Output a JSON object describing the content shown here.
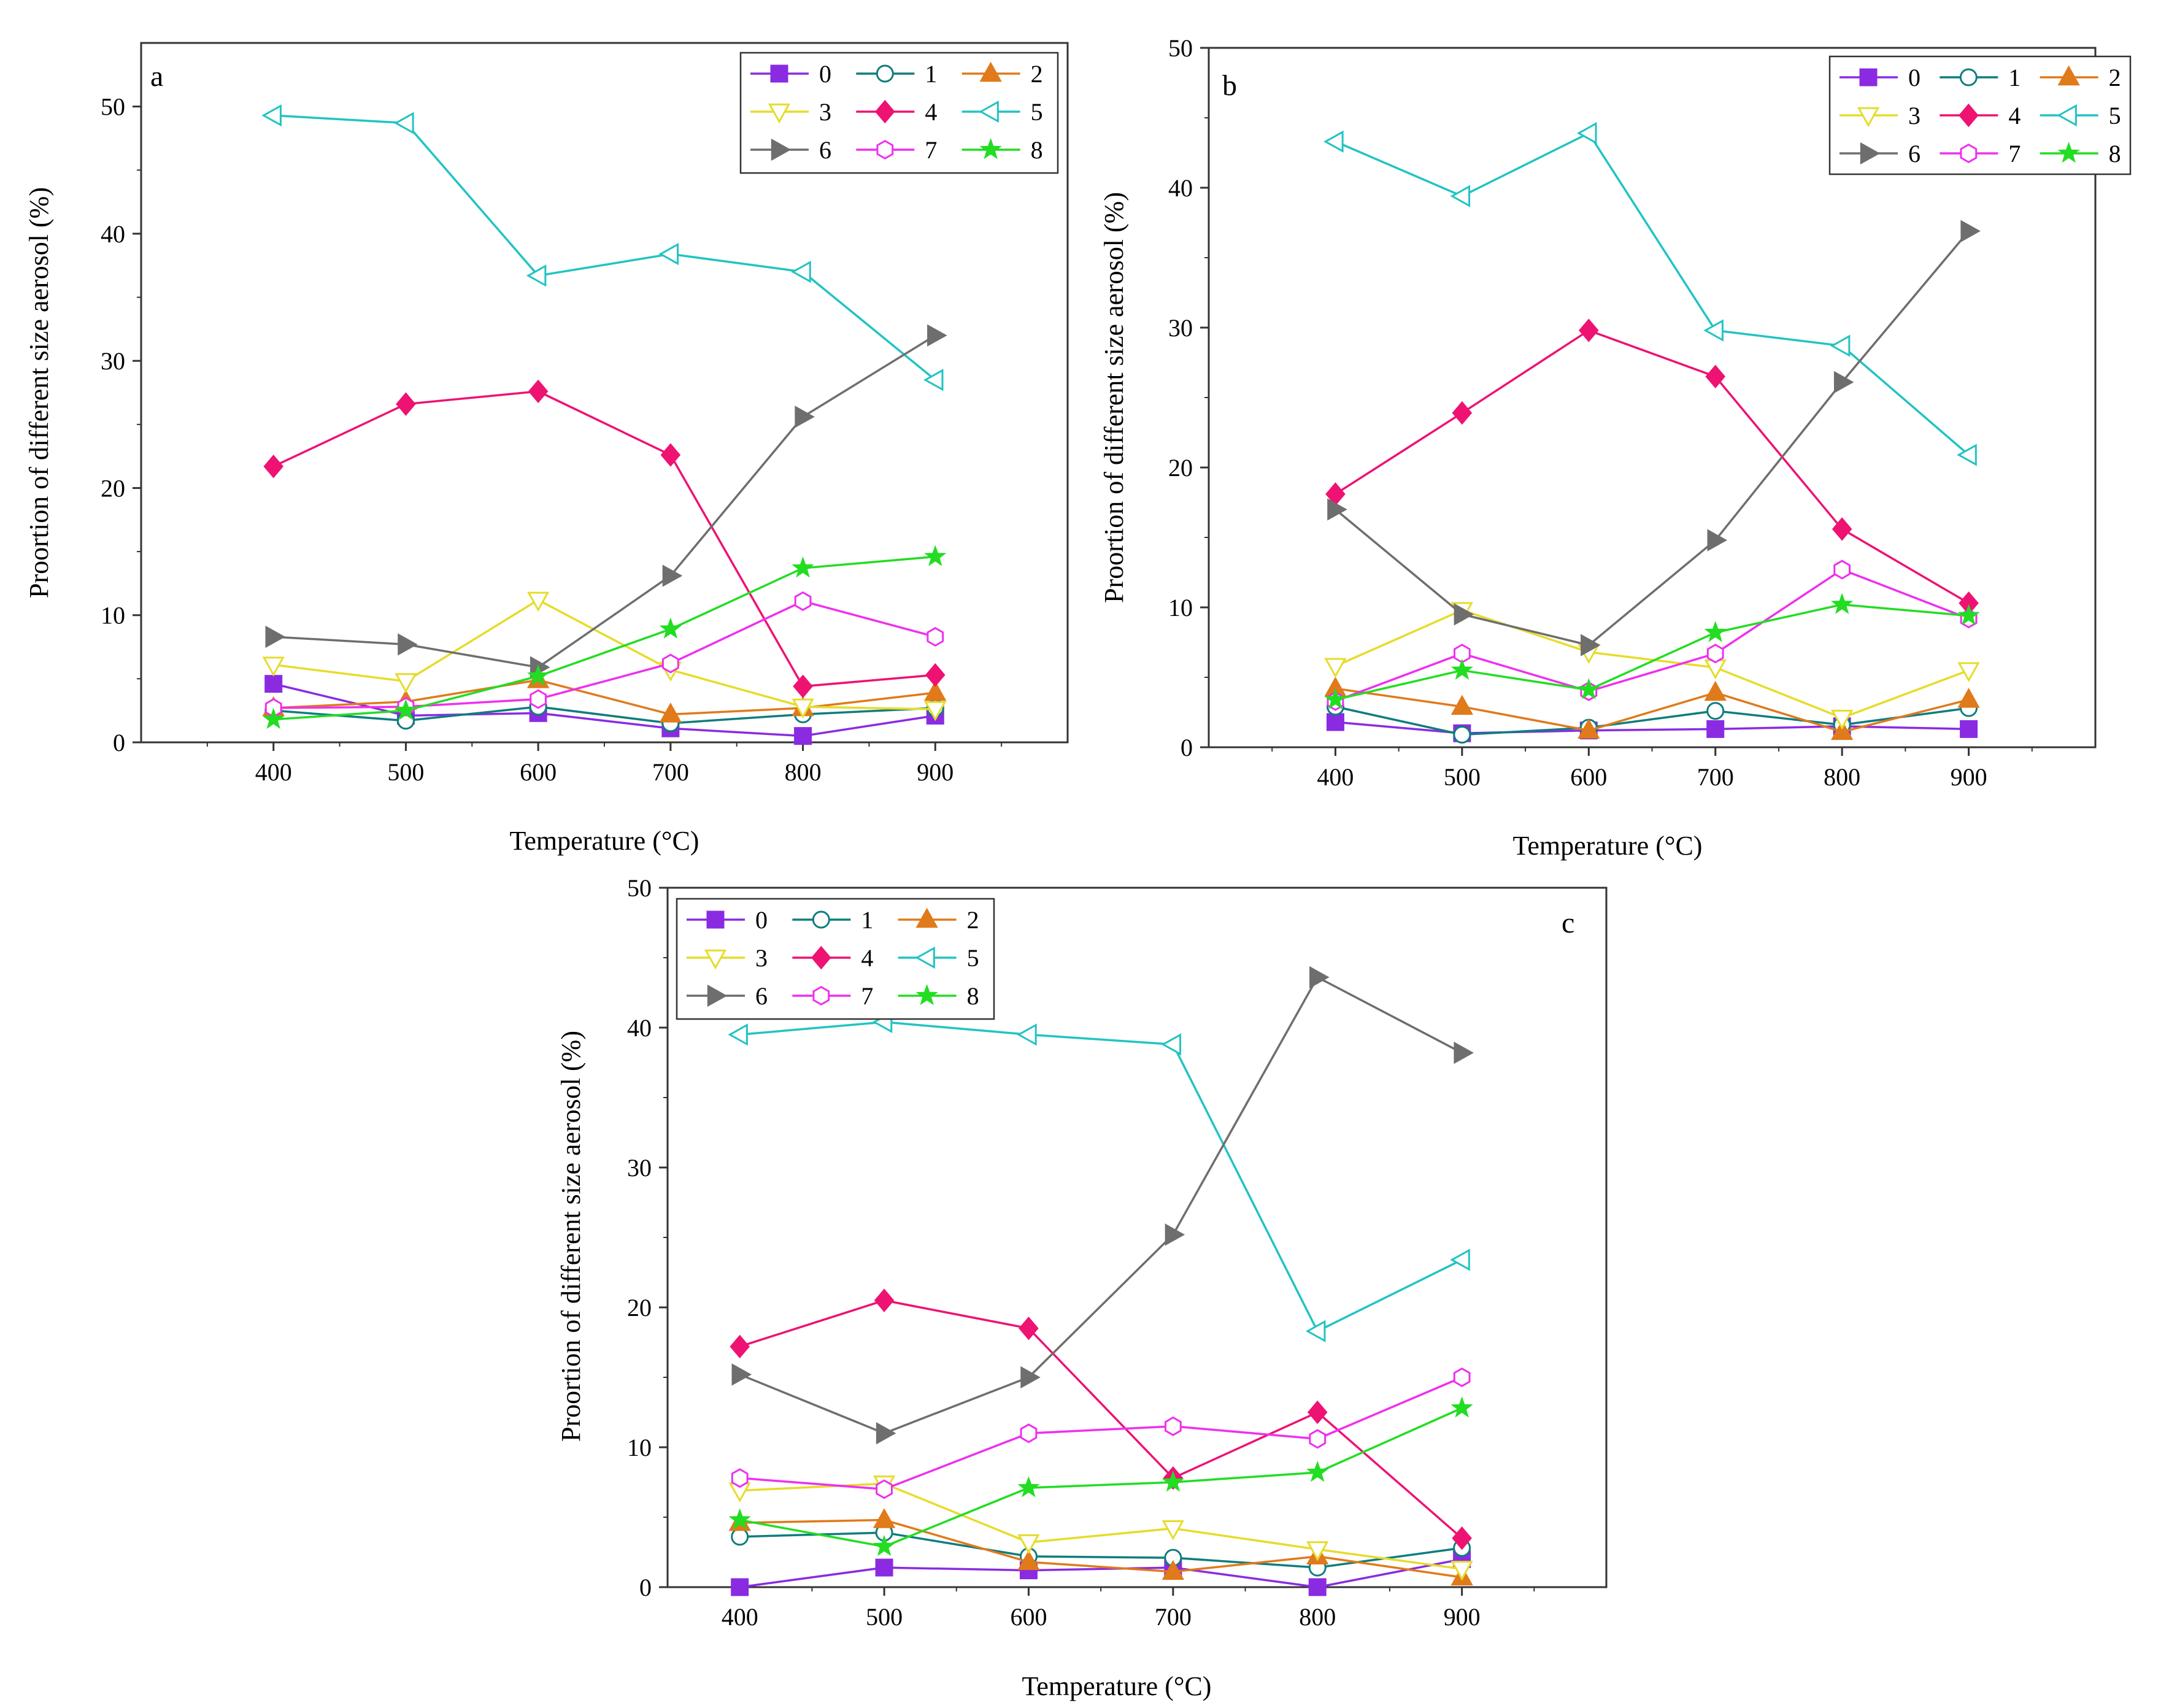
{
  "figure": {
    "series_colors": {
      "0": "#8a2be2",
      "1": "#0f7d7d",
      "2": "#e07a1a",
      "3": "#e6dc2a",
      "4": "#ee1273",
      "5": "#22c3c3",
      "6": "#6e6e6e",
      "7": "#ee30ee",
      "8": "#22dd22"
    },
    "series_markers": {
      "0": "square-filled",
      "1": "circle-open",
      "2": "triangle-up-filled",
      "3": "triangle-down-open",
      "4": "diamond-filled",
      "5": "triangle-left-open",
      "6": "triangle-right-filled",
      "7": "hexagon-open",
      "8": "star-filled"
    }
  },
  "chart_data": [
    {
      "type": "line",
      "panel": "a",
      "title": "",
      "xlabel": "Temperature (°C)",
      "ylabel": "Proortion of different size aerosol (%)",
      "x": [
        400,
        500,
        600,
        700,
        800,
        900
      ],
      "xlim": [
        300,
        1000
      ],
      "ylim": [
        0,
        55
      ],
      "xticks": [
        "400",
        "500",
        "600",
        "700",
        "800",
        "900"
      ],
      "yticks": [
        "0",
        "10",
        "20",
        "30",
        "40",
        "50"
      ],
      "legend_position": "top-right",
      "series": [
        {
          "name": "0",
          "values": [
            4.6,
            2.1,
            2.3,
            1.1,
            0.5,
            2.1
          ]
        },
        {
          "name": "1",
          "values": [
            2.5,
            1.7,
            2.8,
            1.5,
            2.2,
            2.7
          ]
        },
        {
          "name": "2",
          "values": [
            2.7,
            3.2,
            4.9,
            2.2,
            2.7,
            3.9
          ]
        },
        {
          "name": "3",
          "values": [
            6.1,
            4.8,
            11.2,
            5.7,
            2.8,
            2.6
          ]
        },
        {
          "name": "4",
          "values": [
            21.7,
            26.6,
            27.6,
            22.6,
            4.4,
            5.3
          ]
        },
        {
          "name": "5",
          "values": [
            49.3,
            48.7,
            36.7,
            38.4,
            37.0,
            28.5
          ]
        },
        {
          "name": "6",
          "values": [
            8.3,
            7.7,
            5.9,
            13.1,
            25.6,
            32.0
          ]
        },
        {
          "name": "7",
          "values": [
            2.7,
            2.8,
            3.4,
            6.2,
            11.1,
            8.3
          ]
        },
        {
          "name": "8",
          "values": [
            1.8,
            2.5,
            5.2,
            8.9,
            13.7,
            14.6
          ]
        }
      ]
    },
    {
      "type": "line",
      "panel": "b",
      "title": "",
      "xlabel": "Temperature (°C)",
      "ylabel": "Proortion of different size aerosol (%)",
      "x": [
        400,
        500,
        600,
        700,
        800,
        900
      ],
      "xlim": [
        300,
        1000
      ],
      "ylim": [
        0,
        50
      ],
      "xticks": [
        "400",
        "500",
        "600",
        "700",
        "800",
        "900"
      ],
      "yticks": [
        "0",
        "10",
        "20",
        "30",
        "40",
        "50"
      ],
      "legend_position": "top-right",
      "series": [
        {
          "name": "0",
          "values": [
            1.8,
            1.0,
            1.2,
            1.3,
            1.5,
            1.3
          ]
        },
        {
          "name": "1",
          "values": [
            2.9,
            0.9,
            1.4,
            2.6,
            1.6,
            2.8
          ]
        },
        {
          "name": "2",
          "values": [
            4.2,
            2.9,
            1.2,
            3.9,
            1.1,
            3.4
          ]
        },
        {
          "name": "3",
          "values": [
            5.8,
            9.8,
            6.8,
            5.7,
            2.1,
            5.5
          ]
        },
        {
          "name": "4",
          "values": [
            18.1,
            23.9,
            29.8,
            26.5,
            15.6,
            10.3
          ]
        },
        {
          "name": "5",
          "values": [
            43.3,
            39.4,
            43.9,
            29.8,
            28.7,
            20.9
          ]
        },
        {
          "name": "6",
          "values": [
            17.0,
            9.5,
            7.3,
            14.8,
            26.1,
            36.9
          ]
        },
        {
          "name": "7",
          "values": [
            3.3,
            6.7,
            4.0,
            6.7,
            12.7,
            9.2
          ]
        },
        {
          "name": "8",
          "values": [
            3.4,
            5.5,
            4.1,
            8.2,
            10.2,
            9.4
          ]
        }
      ]
    },
    {
      "type": "line",
      "panel": "c",
      "title": "",
      "xlabel": "Temperature (°C)",
      "ylabel": "Proortion of different size aerosol (%)",
      "x": [
        400,
        500,
        600,
        700,
        800,
        900
      ],
      "xlim": [
        350,
        1000
      ],
      "ylim": [
        0,
        50
      ],
      "xticks": [
        "400",
        "500",
        "600",
        "700",
        "800",
        "900"
      ],
      "yticks": [
        "0",
        "10",
        "20",
        "30",
        "40",
        "50"
      ],
      "legend_position": "top-left",
      "series": [
        {
          "name": "0",
          "values": [
            0.0,
            1.4,
            1.2,
            1.4,
            0.0,
            2.0
          ]
        },
        {
          "name": "1",
          "values": [
            3.6,
            3.9,
            2.2,
            2.1,
            1.4,
            2.8
          ]
        },
        {
          "name": "2",
          "values": [
            4.6,
            4.8,
            1.8,
            1.1,
            2.2,
            0.7
          ]
        },
        {
          "name": "3",
          "values": [
            6.9,
            7.4,
            3.2,
            4.2,
            2.7,
            1.3
          ]
        },
        {
          "name": "4",
          "values": [
            17.2,
            20.5,
            18.5,
            7.8,
            12.5,
            3.5
          ]
        },
        {
          "name": "5",
          "values": [
            39.5,
            40.4,
            39.5,
            38.8,
            18.3,
            23.4
          ]
        },
        {
          "name": "6",
          "values": [
            15.2,
            11.0,
            15.0,
            25.2,
            43.6,
            38.2
          ]
        },
        {
          "name": "7",
          "values": [
            7.8,
            7.0,
            11.0,
            11.5,
            10.6,
            15.0
          ]
        },
        {
          "name": "8",
          "values": [
            4.8,
            2.9,
            7.1,
            7.5,
            8.2,
            12.8
          ]
        }
      ]
    }
  ]
}
